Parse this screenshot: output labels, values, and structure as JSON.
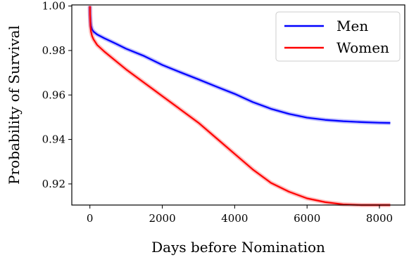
{
  "chart_data": {
    "type": "line",
    "title": "",
    "xlabel": "Days before Nomination",
    "ylabel": "Probability of Survival",
    "xlim": [
      -500,
      8700
    ],
    "ylim": [
      0.9105,
      1.0005
    ],
    "xticks": [
      0,
      2000,
      4000,
      6000,
      8000
    ],
    "xtick_labels": [
      "0",
      "2000",
      "4000",
      "6000",
      "8000"
    ],
    "yticks": [
      0.92,
      0.94,
      0.96,
      0.98,
      1.0
    ],
    "ytick_labels": [
      "0.92",
      "0.94",
      "0.96",
      "0.98",
      "1.00"
    ],
    "grid": false,
    "legend_position": "top-right",
    "series": [
      {
        "name": "Men",
        "color": "#0000ff",
        "x": [
          0,
          5,
          15,
          30,
          60,
          100,
          200,
          400,
          700,
          1000,
          1500,
          2000,
          2500,
          3000,
          3500,
          4000,
          4500,
          5000,
          5500,
          6000,
          6500,
          7000,
          7500,
          8000,
          8300
        ],
        "y": [
          1.0,
          0.996,
          0.993,
          0.991,
          0.9895,
          0.9885,
          0.9872,
          0.9855,
          0.9832,
          0.9808,
          0.9775,
          0.9735,
          0.9702,
          0.967,
          0.9637,
          0.9605,
          0.9568,
          0.9538,
          0.9515,
          0.9498,
          0.9488,
          0.9482,
          0.9478,
          0.9475,
          0.9474
        ]
      },
      {
        "name": "Women",
        "color": "#ff0000",
        "x": [
          0,
          5,
          15,
          30,
          60,
          100,
          200,
          400,
          700,
          1000,
          1500,
          2000,
          2500,
          3000,
          3500,
          4000,
          4500,
          5000,
          5500,
          6000,
          6500,
          7000,
          7500,
          8000,
          8300
        ],
        "y": [
          1.0,
          0.995,
          0.991,
          0.9885,
          0.9865,
          0.985,
          0.9825,
          0.9795,
          0.9755,
          0.9715,
          0.9655,
          0.9595,
          0.9535,
          0.9475,
          0.9405,
          0.9335,
          0.9265,
          0.9205,
          0.9165,
          0.9135,
          0.9118,
          0.9108,
          0.9105,
          0.9105,
          0.9105
        ]
      }
    ]
  }
}
